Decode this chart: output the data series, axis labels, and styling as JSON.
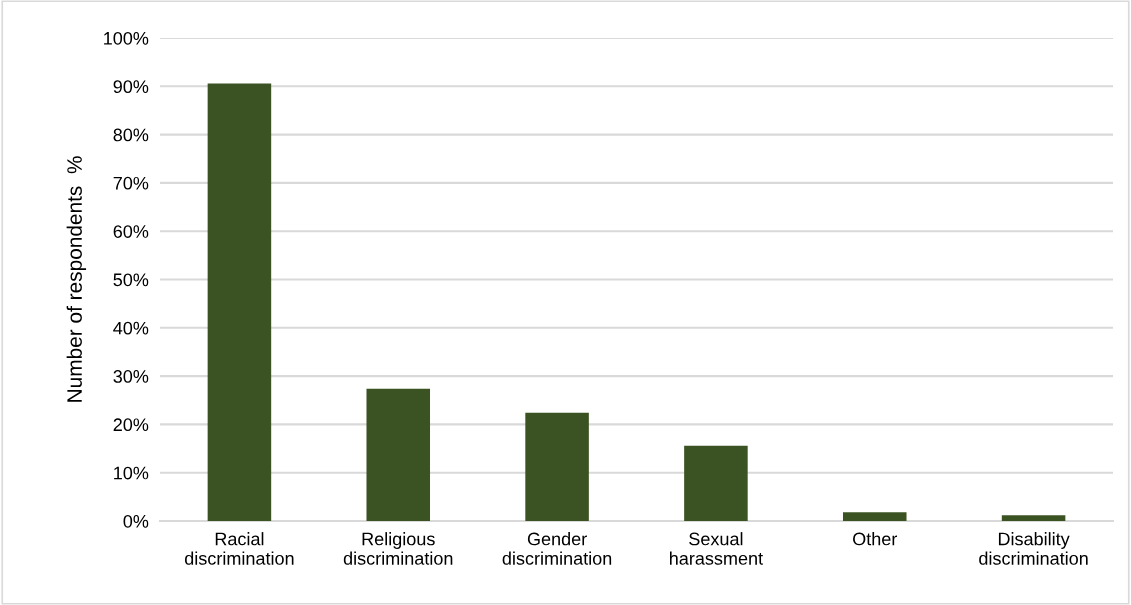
{
  "chart_data": {
    "type": "bar",
    "ylabel": "Number of respondents  %",
    "categories": [
      "Racial\ndiscrimination",
      "Religious\ndiscrimination",
      "Gender\ndiscrimination",
      "Sexual\nharassment",
      "Other",
      "Disability\ndiscrimination"
    ],
    "values": [
      90.6,
      27.4,
      22.4,
      15.6,
      1.8,
      1.2
    ],
    "color": "#3b5323",
    "ylim": [
      0,
      100
    ],
    "yticks": [
      {
        "value": 0,
        "label": "0%"
      },
      {
        "value": 10,
        "label": "10%"
      },
      {
        "value": 20,
        "label": "20%"
      },
      {
        "value": 30,
        "label": "30%"
      },
      {
        "value": 40,
        "label": "40%"
      },
      {
        "value": 50,
        "label": "50%"
      },
      {
        "value": 60,
        "label": "60%"
      },
      {
        "value": 70,
        "label": "70%"
      },
      {
        "value": 80,
        "label": "80%"
      },
      {
        "value": 90,
        "label": "90%"
      },
      {
        "value": 100,
        "label": "100%"
      }
    ],
    "grid": "y"
  }
}
